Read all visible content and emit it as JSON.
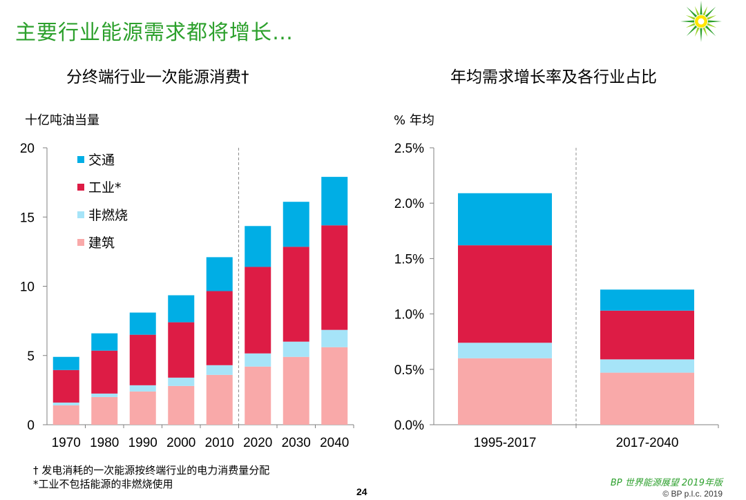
{
  "slide": {
    "title": "主要行业能源需求都将增长…",
    "page_number": "24",
    "source": "BP 世界能源展望 2019年版",
    "copyright": "© BP p.l.c. 2019",
    "footnotes": [
      "† 发电消耗的一次能源按终端行业的电力消费量分配",
      "*工业不包括能源的非燃烧使用"
    ],
    "logo_icon": "bp-helios-logo-icon"
  },
  "colors": {
    "transport": "#00aee5",
    "industry": "#dd1c45",
    "noncombusted": "#a6e4f8",
    "buildings": "#f9a9a9",
    "title_green": "#2ca02c"
  },
  "chart_data": [
    {
      "type": "bar",
      "stacked": true,
      "title": "分终端行业一次能源消费†",
      "ylabel": "十亿吨油当量",
      "categories": [
        "1970",
        "1980",
        "1990",
        "2000",
        "2010",
        "2020",
        "2030",
        "2040"
      ],
      "ylim": [
        0,
        20
      ],
      "yticks": [
        "0",
        "5",
        "10",
        "15",
        "20"
      ],
      "yticks_values": [
        0,
        5,
        10,
        15,
        20
      ],
      "divider_between": [
        "2010",
        "2020"
      ],
      "legend_position": "top-left",
      "series": [
        {
          "name": "建筑",
          "key": "buildings",
          "values": [
            1.4,
            2.0,
            2.4,
            2.8,
            3.6,
            4.2,
            4.9,
            5.6
          ]
        },
        {
          "name": "非燃烧",
          "key": "noncombusted",
          "values": [
            0.2,
            0.25,
            0.45,
            0.6,
            0.7,
            0.95,
            1.1,
            1.25
          ]
        },
        {
          "name": "工业*",
          "key": "industry",
          "values": [
            2.35,
            3.1,
            3.65,
            4.0,
            5.35,
            6.25,
            6.85,
            7.55
          ]
        },
        {
          "name": "交通",
          "key": "transport",
          "values": [
            0.95,
            1.25,
            1.6,
            1.95,
            2.45,
            2.95,
            3.25,
            3.5
          ]
        }
      ],
      "legend_order": [
        "transport",
        "industry",
        "noncombusted",
        "buildings"
      ]
    },
    {
      "type": "bar",
      "stacked": true,
      "title": "年均需求增长率及各行业占比",
      "ylabel": "% 年均",
      "categories": [
        "1995-2017",
        "2017-2040"
      ],
      "ylim": [
        0,
        2.5
      ],
      "yticks": [
        "0.0%",
        "0.5%",
        "1.0%",
        "1.5%",
        "2.0%",
        "2.5%"
      ],
      "yticks_values": [
        0,
        0.5,
        1.0,
        1.5,
        2.0,
        2.5
      ],
      "divider_between": [
        "1995-2017",
        "2017-2040"
      ],
      "series": [
        {
          "name": "建筑",
          "key": "buildings",
          "values": [
            0.6,
            0.47
          ]
        },
        {
          "name": "非燃烧",
          "key": "noncombusted",
          "values": [
            0.14,
            0.12
          ]
        },
        {
          "name": "工业*",
          "key": "industry",
          "values": [
            0.88,
            0.44
          ]
        },
        {
          "name": "交通",
          "key": "transport",
          "values": [
            0.47,
            0.19
          ]
        }
      ]
    }
  ]
}
